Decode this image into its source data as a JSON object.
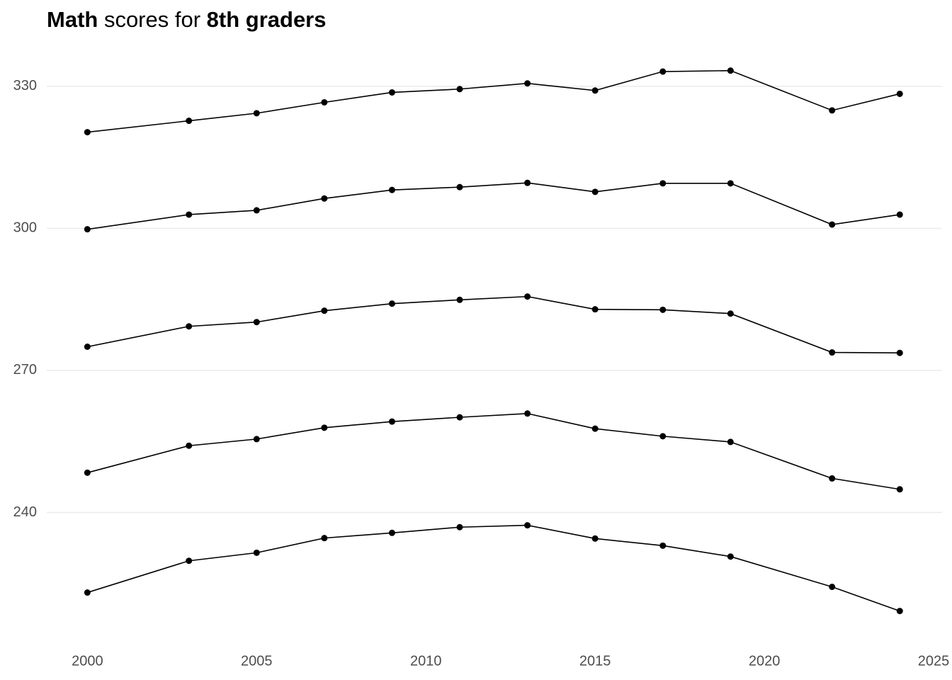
{
  "chart_data": {
    "type": "line",
    "title": [
      {
        "text": "Math",
        "bold": true
      },
      {
        "text": " scores for ",
        "bold": false
      },
      {
        "text": "8th graders",
        "bold": true
      }
    ],
    "x": [
      2000,
      2003,
      2005,
      2007,
      2009,
      2011,
      2013,
      2015,
      2017,
      2019,
      2022,
      2024
    ],
    "series": [
      {
        "color": "#000000",
        "values": [
          320.3,
          322.7,
          324.3,
          326.6,
          328.7,
          329.4,
          330.6,
          329.1,
          333.1,
          333.3,
          324.9,
          328.4
        ]
      },
      {
        "color": "#000000",
        "values": [
          299.8,
          302.9,
          303.8,
          306.3,
          308.1,
          308.7,
          309.6,
          307.7,
          309.5,
          309.5,
          300.8,
          302.9
        ]
      },
      {
        "color": "#000000",
        "values": [
          275.0,
          279.3,
          280.2,
          282.6,
          284.1,
          284.9,
          285.6,
          282.9,
          282.8,
          282.0,
          273.8,
          273.7
        ]
      },
      {
        "color": "#000000",
        "values": [
          248.4,
          254.1,
          255.5,
          257.9,
          259.2,
          260.1,
          260.9,
          257.7,
          256.1,
          254.9,
          247.2,
          244.9
        ]
      },
      {
        "color": "#000000",
        "values": [
          223.1,
          229.8,
          231.5,
          234.6,
          235.7,
          236.9,
          237.3,
          234.5,
          233.0,
          230.7,
          224.3,
          219.2
        ]
      }
    ],
    "xlim": [
      1998.8,
      2025.25
    ],
    "xticks": [
      2000,
      2005,
      2010,
      2015,
      2020,
      2025
    ],
    "ylim": [
      216,
      334
    ],
    "yticks": [
      240,
      270,
      300,
      330
    ],
    "grid": true,
    "markers": true
  }
}
